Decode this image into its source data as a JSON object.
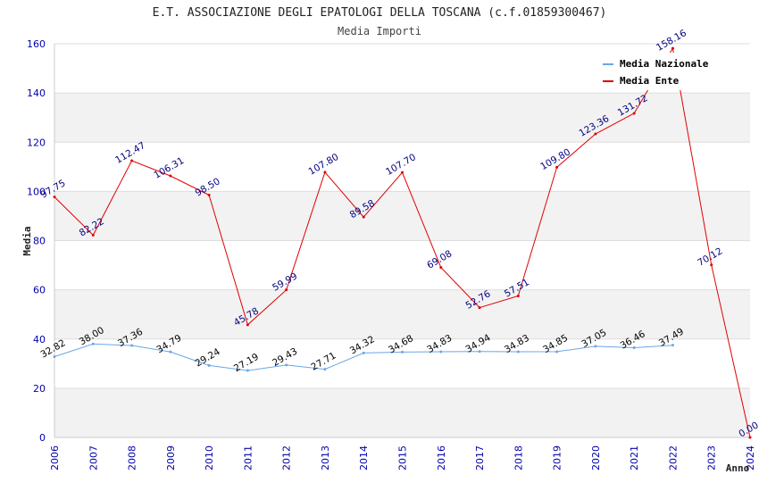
{
  "chart_data": {
    "type": "line",
    "title": "E.T. ASSOCIAZIONE DEGLI EPATOLOGI DELLA TOSCANA (c.f.01859300467)",
    "subtitle": "Media Importi",
    "xlabel": "Anno",
    "ylabel": "Media",
    "ylim": [
      0,
      160
    ],
    "yticks": [
      0,
      20,
      40,
      60,
      80,
      100,
      120,
      140,
      160
    ],
    "grid": "horizontal alternating bands",
    "legend_position": "top-right",
    "x": [
      "2006",
      "2007",
      "2008",
      "2009",
      "2010",
      "2011",
      "2012",
      "2013",
      "2014",
      "2015",
      "2016",
      "2017",
      "2018",
      "2019",
      "2020",
      "2021",
      "2022",
      "2023",
      "2024"
    ],
    "series": [
      {
        "name": "Media Nazionale",
        "color": "#6aa6e8",
        "label_color": "#000000",
        "values": [
          32.82,
          38.0,
          37.36,
          34.79,
          29.24,
          27.19,
          29.43,
          27.71,
          34.32,
          34.68,
          34.83,
          34.94,
          34.83,
          34.85,
          37.05,
          36.46,
          37.49,
          null,
          null
        ],
        "labels": [
          "32.82",
          "38.00",
          "37.36",
          "34.79",
          "29.24",
          "27.19",
          "29.43",
          "27.71",
          "34.32",
          "34.68",
          "34.83",
          "34.94",
          "34.83",
          "34.85",
          "37.05",
          "36.46",
          "37.49",
          null,
          null
        ]
      },
      {
        "name": "Media Ente",
        "color": "#e00000",
        "label_color": "#000080",
        "values": [
          97.75,
          82.22,
          112.47,
          106.31,
          98.5,
          45.78,
          59.99,
          107.8,
          89.58,
          107.7,
          69.08,
          52.76,
          57.51,
          109.8,
          123.36,
          131.72,
          158.16,
          70.12,
          0.0
        ],
        "labels": [
          "97.75",
          "82.22",
          "112.47",
          "106.31",
          "98.50",
          "45.78",
          "59.99",
          "107.80",
          "89.58",
          "107.70",
          "69.08",
          "52.76",
          "57.51",
          "109.80",
          "123.36",
          "131.72",
          "158.16",
          "70.12",
          "0.00"
        ]
      }
    ]
  }
}
